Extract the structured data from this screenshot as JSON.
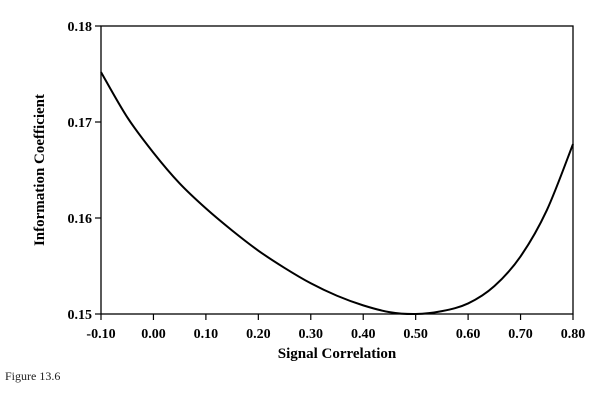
{
  "chart_data": {
    "type": "line",
    "title": "",
    "xlabel": "Signal Correlation",
    "ylabel": "Information Coefficient",
    "xlim": [
      -0.1,
      0.8
    ],
    "ylim": [
      0.15,
      0.18
    ],
    "x_ticks": [
      "-0.10",
      "0.00",
      "0.10",
      "0.20",
      "0.30",
      "0.40",
      "0.50",
      "0.60",
      "0.70",
      "0.80"
    ],
    "y_ticks": [
      "0.15",
      "0.16",
      "0.17",
      "0.18"
    ],
    "grid": false,
    "legend": "none",
    "series": [
      {
        "color": "#000000",
        "x": [
          -0.1,
          -0.05,
          0.0,
          0.05,
          0.1,
          0.15,
          0.2,
          0.25,
          0.3,
          0.35,
          0.4,
          0.45,
          0.5,
          0.55,
          0.6,
          0.65,
          0.7,
          0.75,
          0.8
        ],
        "y": [
          0.1752,
          0.1705,
          0.1668,
          0.1636,
          0.161,
          0.1587,
          0.1566,
          0.1548,
          0.1532,
          0.1519,
          0.1509,
          0.1502,
          0.15,
          0.1503,
          0.1511,
          0.1529,
          0.156,
          0.1608,
          0.1677
        ]
      }
    ]
  },
  "figure_caption": "Figure 13.6"
}
